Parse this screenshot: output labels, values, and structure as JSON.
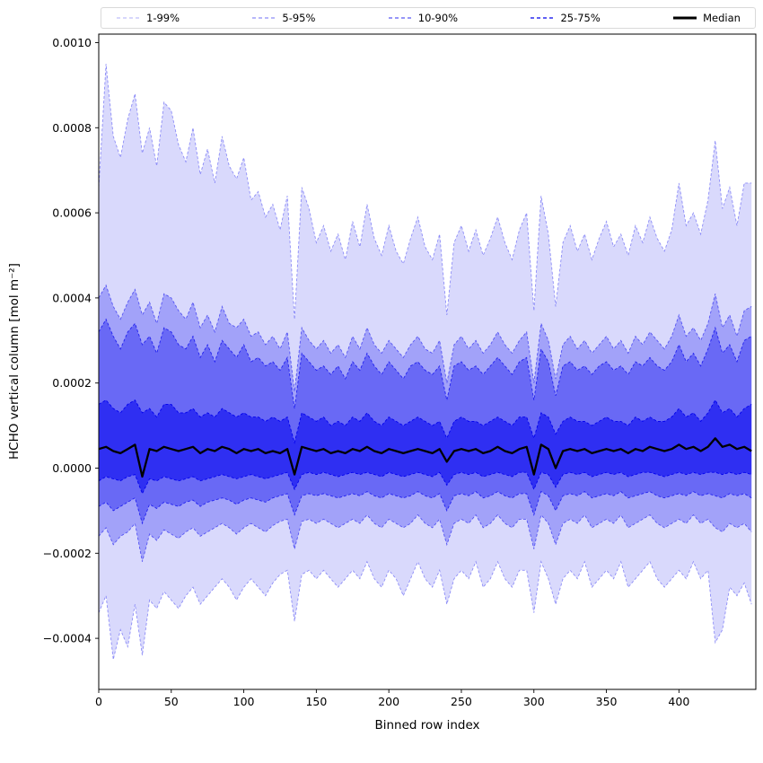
{
  "figure": {
    "background": "#ffffff"
  },
  "legend": {
    "items": [
      {
        "label": "1-99%",
        "type": "dashed",
        "color": "#0000ee",
        "alpha": 0.25
      },
      {
        "label": "5-95%",
        "type": "dashed",
        "color": "#0000ee",
        "alpha": 0.45
      },
      {
        "label": "10-90%",
        "type": "dashed",
        "color": "#0000ee",
        "alpha": 0.65
      },
      {
        "label": "25-75%",
        "type": "dashed",
        "color": "#0000ee",
        "alpha": 1.0
      },
      {
        "label": "Median",
        "type": "solid",
        "color": "#000000",
        "alpha": 1.0
      }
    ]
  },
  "chart_data": {
    "type": "area",
    "title": "",
    "xlabel": "Binned row index",
    "ylabel": "HCHO vertical column [mol m⁻²]",
    "xlim": [
      0,
      453
    ],
    "ylim": [
      -0.00052,
      0.00102
    ],
    "grid": false,
    "legend_position": "top",
    "x_ticks": [
      0,
      50,
      100,
      150,
      200,
      250,
      300,
      350,
      400
    ],
    "x_tick_labels": [
      "0",
      "50",
      "100",
      "150",
      "200",
      "250",
      "300",
      "350",
      "400"
    ],
    "y_ticks": [
      -0.0004,
      -0.0002,
      0,
      0.0002,
      0.0004,
      0.0006,
      0.0008,
      0.001
    ],
    "y_tick_labels": [
      "−0.0004",
      "−0.0002",
      "0.0000",
      "0.0002",
      "0.0004",
      "0.0006",
      "0.0008",
      "0.0010"
    ],
    "band_color": "#0000ee",
    "median_color": "#000000",
    "y_scale": 0.0001,
    "y_unit_note": "series values are in units of 1e-4 mol m^-2",
    "x": [
      0,
      5,
      10,
      15,
      20,
      25,
      30,
      35,
      40,
      45,
      50,
      55,
      60,
      65,
      70,
      75,
      80,
      85,
      90,
      95,
      100,
      105,
      110,
      115,
      120,
      125,
      130,
      135,
      140,
      145,
      150,
      155,
      160,
      165,
      170,
      175,
      180,
      185,
      190,
      195,
      200,
      205,
      210,
      215,
      220,
      225,
      230,
      235,
      240,
      245,
      250,
      255,
      260,
      265,
      270,
      275,
      280,
      285,
      290,
      295,
      300,
      305,
      310,
      315,
      320,
      325,
      330,
      335,
      340,
      345,
      350,
      355,
      360,
      365,
      370,
      375,
      380,
      385,
      390,
      395,
      400,
      405,
      410,
      415,
      420,
      425,
      430,
      435,
      440,
      445,
      450
    ],
    "series": {
      "p99": [
        6.6,
        9.5,
        7.8,
        7.3,
        8.2,
        8.8,
        7.4,
        8.0,
        7.1,
        8.6,
        8.4,
        7.6,
        7.2,
        8.0,
        6.9,
        7.5,
        6.7,
        7.8,
        7.1,
        6.8,
        7.3,
        6.3,
        6.5,
        5.9,
        6.2,
        5.6,
        6.4,
        3.5,
        6.6,
        6.1,
        5.3,
        5.7,
        5.1,
        5.5,
        4.9,
        5.8,
        5.2,
        6.2,
        5.4,
        5.0,
        5.7,
        5.1,
        4.8,
        5.4,
        5.9,
        5.2,
        4.9,
        5.5,
        3.6,
        5.3,
        5.7,
        5.1,
        5.6,
        5.0,
        5.4,
        5.9,
        5.3,
        4.9,
        5.6,
        6.0,
        3.7,
        6.4,
        5.5,
        3.8,
        5.3,
        5.7,
        5.1,
        5.5,
        4.9,
        5.4,
        5.8,
        5.2,
        5.5,
        5.0,
        5.7,
        5.3,
        5.9,
        5.4,
        5.1,
        5.6,
        6.7,
        5.7,
        6.0,
        5.5,
        6.3,
        7.7,
        6.1,
        6.6,
        5.7,
        6.7,
        6.7
      ],
      "p95": [
        4.0,
        4.3,
        3.8,
        3.5,
        3.9,
        4.2,
        3.6,
        3.9,
        3.4,
        4.1,
        4.0,
        3.7,
        3.5,
        3.9,
        3.3,
        3.6,
        3.2,
        3.8,
        3.4,
        3.3,
        3.5,
        3.1,
        3.2,
        2.9,
        3.1,
        2.8,
        3.2,
        1.8,
        3.3,
        3.0,
        2.8,
        3.0,
        2.7,
        2.9,
        2.6,
        3.1,
        2.8,
        3.3,
        2.9,
        2.7,
        3.0,
        2.8,
        2.6,
        2.9,
        3.1,
        2.8,
        2.7,
        3.0,
        2.0,
        2.9,
        3.1,
        2.8,
        3.0,
        2.7,
        2.9,
        3.2,
        2.9,
        2.7,
        3.0,
        3.2,
        2.0,
        3.4,
        3.0,
        2.1,
        2.9,
        3.1,
        2.8,
        3.0,
        2.7,
        2.9,
        3.1,
        2.8,
        3.0,
        2.7,
        3.1,
        2.9,
        3.2,
        3.0,
        2.8,
        3.1,
        3.6,
        3.1,
        3.3,
        3.0,
        3.4,
        4.1,
        3.3,
        3.6,
        3.1,
        3.7,
        3.8
      ],
      "p90": [
        3.2,
        3.5,
        3.1,
        2.8,
        3.2,
        3.4,
        2.9,
        3.1,
        2.7,
        3.3,
        3.2,
        2.9,
        2.8,
        3.1,
        2.6,
        2.9,
        2.5,
        3.0,
        2.8,
        2.6,
        2.9,
        2.5,
        2.6,
        2.4,
        2.5,
        2.3,
        2.6,
        1.4,
        2.7,
        2.5,
        2.3,
        2.4,
        2.2,
        2.4,
        2.1,
        2.5,
        2.3,
        2.7,
        2.4,
        2.2,
        2.5,
        2.3,
        2.1,
        2.4,
        2.5,
        2.3,
        2.2,
        2.4,
        1.6,
        2.4,
        2.5,
        2.3,
        2.4,
        2.2,
        2.4,
        2.6,
        2.4,
        2.2,
        2.5,
        2.6,
        1.6,
        2.8,
        2.5,
        1.7,
        2.4,
        2.5,
        2.3,
        2.4,
        2.2,
        2.4,
        2.5,
        2.3,
        2.4,
        2.2,
        2.5,
        2.4,
        2.6,
        2.4,
        2.3,
        2.5,
        2.9,
        2.5,
        2.7,
        2.4,
        2.8,
        3.3,
        2.7,
        2.9,
        2.5,
        3.0,
        3.1
      ],
      "p75": [
        1.5,
        1.6,
        1.4,
        1.3,
        1.5,
        1.6,
        1.3,
        1.4,
        1.2,
        1.5,
        1.5,
        1.3,
        1.3,
        1.4,
        1.2,
        1.3,
        1.2,
        1.4,
        1.3,
        1.2,
        1.3,
        1.2,
        1.2,
        1.1,
        1.2,
        1.1,
        1.2,
        0.6,
        1.3,
        1.2,
        1.1,
        1.2,
        1.0,
        1.1,
        1.0,
        1.2,
        1.1,
        1.3,
        1.1,
        1.0,
        1.2,
        1.1,
        1.0,
        1.1,
        1.2,
        1.1,
        1.0,
        1.1,
        0.7,
        1.1,
        1.2,
        1.1,
        1.1,
        1.0,
        1.1,
        1.2,
        1.1,
        1.0,
        1.2,
        1.2,
        0.7,
        1.3,
        1.2,
        0.8,
        1.1,
        1.2,
        1.1,
        1.1,
        1.0,
        1.1,
        1.2,
        1.1,
        1.1,
        1.0,
        1.2,
        1.1,
        1.2,
        1.1,
        1.1,
        1.2,
        1.4,
        1.2,
        1.3,
        1.1,
        1.3,
        1.6,
        1.3,
        1.4,
        1.2,
        1.4,
        1.5
      ],
      "median": [
        0.45,
        0.5,
        0.4,
        0.35,
        0.45,
        0.55,
        -0.2,
        0.45,
        0.4,
        0.5,
        0.45,
        0.4,
        0.45,
        0.5,
        0.35,
        0.45,
        0.4,
        0.5,
        0.45,
        0.35,
        0.45,
        0.4,
        0.45,
        0.35,
        0.4,
        0.35,
        0.45,
        -0.15,
        0.5,
        0.45,
        0.4,
        0.45,
        0.35,
        0.4,
        0.35,
        0.45,
        0.4,
        0.5,
        0.4,
        0.35,
        0.45,
        0.4,
        0.35,
        0.4,
        0.45,
        0.4,
        0.35,
        0.45,
        0.15,
        0.4,
        0.45,
        0.4,
        0.45,
        0.35,
        0.4,
        0.5,
        0.4,
        0.35,
        0.45,
        0.5,
        -0.15,
        0.55,
        0.45,
        0.0,
        0.4,
        0.45,
        0.4,
        0.45,
        0.35,
        0.4,
        0.45,
        0.4,
        0.45,
        0.35,
        0.45,
        0.4,
        0.5,
        0.45,
        0.4,
        0.45,
        0.55,
        0.45,
        0.5,
        0.4,
        0.5,
        0.7,
        0.5,
        0.55,
        0.45,
        0.5,
        0.4
      ],
      "p25": [
        -0.3,
        -0.2,
        -0.25,
        -0.3,
        -0.2,
        -0.15,
        -0.6,
        -0.25,
        -0.3,
        -0.2,
        -0.25,
        -0.3,
        -0.25,
        -0.2,
        -0.3,
        -0.25,
        -0.2,
        -0.15,
        -0.2,
        -0.25,
        -0.2,
        -0.15,
        -0.2,
        -0.25,
        -0.2,
        -0.15,
        -0.1,
        -0.5,
        -0.15,
        -0.1,
        -0.15,
        -0.1,
        -0.15,
        -0.2,
        -0.15,
        -0.1,
        -0.15,
        -0.1,
        -0.15,
        -0.2,
        -0.1,
        -0.15,
        -0.2,
        -0.15,
        -0.1,
        -0.15,
        -0.2,
        -0.1,
        -0.4,
        -0.15,
        -0.1,
        -0.15,
        -0.1,
        -0.2,
        -0.15,
        -0.1,
        -0.15,
        -0.2,
        -0.1,
        -0.1,
        -0.5,
        -0.1,
        -0.15,
        -0.45,
        -0.15,
        -0.1,
        -0.15,
        -0.1,
        -0.2,
        -0.15,
        -0.1,
        -0.15,
        -0.1,
        -0.2,
        -0.15,
        -0.1,
        -0.1,
        -0.15,
        -0.2,
        -0.15,
        -0.1,
        -0.15,
        -0.1,
        -0.15,
        -0.1,
        -0.1,
        -0.15,
        -0.1,
        -0.15,
        -0.1,
        -0.15
      ],
      "p10": [
        -0.9,
        -0.8,
        -1.0,
        -0.9,
        -0.8,
        -0.7,
        -1.3,
        -0.85,
        -0.95,
        -0.8,
        -0.85,
        -0.9,
        -0.8,
        -0.75,
        -0.9,
        -0.8,
        -0.75,
        -0.7,
        -0.75,
        -0.85,
        -0.75,
        -0.7,
        -0.75,
        -0.8,
        -0.7,
        -0.65,
        -0.6,
        -1.1,
        -0.65,
        -0.6,
        -0.65,
        -0.6,
        -0.65,
        -0.7,
        -0.65,
        -0.6,
        -0.65,
        -0.55,
        -0.65,
        -0.7,
        -0.6,
        -0.65,
        -0.7,
        -0.65,
        -0.55,
        -0.65,
        -0.7,
        -0.6,
        -1.0,
        -0.65,
        -0.6,
        -0.65,
        -0.55,
        -0.7,
        -0.65,
        -0.55,
        -0.65,
        -0.7,
        -0.6,
        -0.6,
        -1.1,
        -0.55,
        -0.65,
        -1.0,
        -0.65,
        -0.6,
        -0.65,
        -0.55,
        -0.7,
        -0.65,
        -0.6,
        -0.65,
        -0.55,
        -0.7,
        -0.65,
        -0.6,
        -0.55,
        -0.65,
        -0.7,
        -0.65,
        -0.6,
        -0.65,
        -0.55,
        -0.65,
        -0.6,
        -0.65,
        -0.7,
        -0.6,
        -0.65,
        -0.6,
        -0.7
      ],
      "p05": [
        -1.6,
        -1.4,
        -1.8,
        -1.6,
        -1.5,
        -1.3,
        -2.2,
        -1.55,
        -1.7,
        -1.45,
        -1.55,
        -1.65,
        -1.5,
        -1.4,
        -1.6,
        -1.5,
        -1.4,
        -1.3,
        -1.4,
        -1.55,
        -1.4,
        -1.3,
        -1.4,
        -1.5,
        -1.35,
        -1.25,
        -1.2,
        -1.9,
        -1.25,
        -1.2,
        -1.3,
        -1.2,
        -1.3,
        -1.4,
        -1.3,
        -1.2,
        -1.3,
        -1.1,
        -1.3,
        -1.4,
        -1.2,
        -1.3,
        -1.4,
        -1.3,
        -1.1,
        -1.3,
        -1.4,
        -1.2,
        -1.8,
        -1.3,
        -1.2,
        -1.3,
        -1.1,
        -1.4,
        -1.3,
        -1.1,
        -1.3,
        -1.4,
        -1.2,
        -1.2,
        -1.9,
        -1.1,
        -1.3,
        -1.8,
        -1.3,
        -1.2,
        -1.3,
        -1.1,
        -1.4,
        -1.3,
        -1.2,
        -1.3,
        -1.1,
        -1.4,
        -1.3,
        -1.2,
        -1.1,
        -1.3,
        -1.4,
        -1.3,
        -1.2,
        -1.3,
        -1.1,
        -1.3,
        -1.2,
        -1.4,
        -1.5,
        -1.3,
        -1.4,
        -1.3,
        -1.5
      ],
      "p01": [
        -3.4,
        -3.0,
        -4.5,
        -3.8,
        -4.2,
        -3.2,
        -4.4,
        -3.1,
        -3.3,
        -2.9,
        -3.1,
        -3.3,
        -3.0,
        -2.8,
        -3.2,
        -3.0,
        -2.8,
        -2.6,
        -2.8,
        -3.1,
        -2.8,
        -2.6,
        -2.8,
        -3.0,
        -2.7,
        -2.5,
        -2.4,
        -3.6,
        -2.5,
        -2.4,
        -2.6,
        -2.4,
        -2.6,
        -2.8,
        -2.6,
        -2.4,
        -2.6,
        -2.2,
        -2.6,
        -2.8,
        -2.4,
        -2.6,
        -3.0,
        -2.6,
        -2.2,
        -2.6,
        -2.8,
        -2.4,
        -3.2,
        -2.6,
        -2.4,
        -2.6,
        -2.2,
        -2.8,
        -2.6,
        -2.2,
        -2.6,
        -2.8,
        -2.4,
        -2.4,
        -3.4,
        -2.2,
        -2.6,
        -3.2,
        -2.6,
        -2.4,
        -2.6,
        -2.2,
        -2.8,
        -2.6,
        -2.4,
        -2.6,
        -2.2,
        -2.8,
        -2.6,
        -2.4,
        -2.2,
        -2.6,
        -2.8,
        -2.6,
        -2.4,
        -2.6,
        -2.2,
        -2.6,
        -2.4,
        -4.1,
        -3.8,
        -2.8,
        -3.0,
        -2.7,
        -3.2
      ]
    },
    "bands": [
      {
        "label": "1-99%",
        "lower": "p01",
        "upper": "p99",
        "fill_alpha": 0.15,
        "edge_alpha": 0.4
      },
      {
        "label": "5-95%",
        "lower": "p05",
        "upper": "p95",
        "fill_alpha": 0.25,
        "edge_alpha": 0.55
      },
      {
        "label": "10-90%",
        "lower": "p10",
        "upper": "p90",
        "fill_alpha": 0.35,
        "edge_alpha": 0.75
      },
      {
        "label": "25-75%",
        "lower": "p25",
        "upper": "p75",
        "fill_alpha": 0.55,
        "edge_alpha": 1.0
      }
    ]
  }
}
